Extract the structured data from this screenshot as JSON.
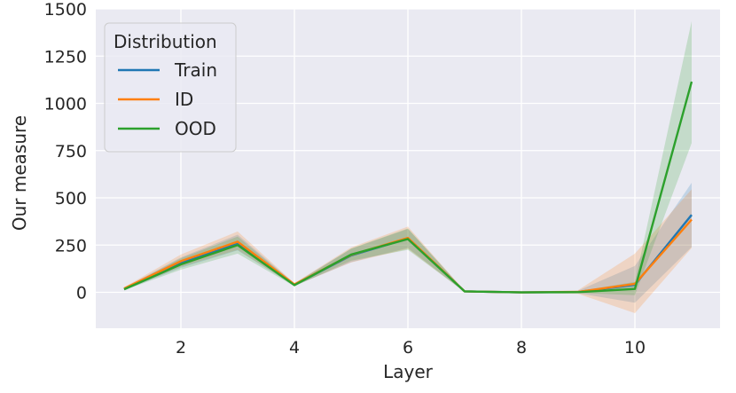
{
  "chart_data": {
    "type": "line",
    "xlabel": "Layer",
    "ylabel": "Our measure",
    "xlim": [
      0.5,
      11.5
    ],
    "ylim": [
      -190,
      1500
    ],
    "xticks": [
      2,
      4,
      6,
      8,
      10
    ],
    "yticks": [
      0,
      250,
      500,
      750,
      1000,
      1250,
      1500
    ],
    "grid": true,
    "background": "#eaeaf2",
    "legend": {
      "title": "Distribution",
      "placement": "top-left"
    },
    "x": [
      1,
      2,
      3,
      4,
      5,
      6,
      7,
      8,
      9,
      10,
      11
    ],
    "series": [
      {
        "name": "Train",
        "color": "#1f77b4",
        "values": [
          18,
          155,
          262,
          40,
          195,
          285,
          5,
          0,
          2,
          40,
          410
        ],
        "lower": [
          12,
          130,
          222,
          34,
          160,
          235,
          2,
          -2,
          -5,
          -55,
          240
        ],
        "upper": [
          24,
          185,
          305,
          47,
          230,
          335,
          8,
          2,
          9,
          140,
          580
        ]
      },
      {
        "name": "ID",
        "color": "#ff7f0e",
        "values": [
          20,
          165,
          268,
          42,
          198,
          288,
          5,
          0,
          2,
          45,
          385
        ],
        "lower": [
          13,
          135,
          225,
          35,
          158,
          230,
          2,
          -2,
          -8,
          -110,
          235
        ],
        "upper": [
          27,
          200,
          322,
          49,
          238,
          348,
          8,
          2,
          12,
          205,
          545
        ]
      },
      {
        "name": "OOD",
        "color": "#2ca02c",
        "values": [
          16,
          148,
          250,
          38,
          200,
          282,
          5,
          0,
          1,
          18,
          1115
        ],
        "lower": [
          11,
          120,
          205,
          32,
          168,
          225,
          2,
          -2,
          -3,
          -15,
          790
        ],
        "upper": [
          21,
          180,
          295,
          45,
          232,
          338,
          8,
          2,
          6,
          55,
          1435
        ]
      }
    ]
  }
}
